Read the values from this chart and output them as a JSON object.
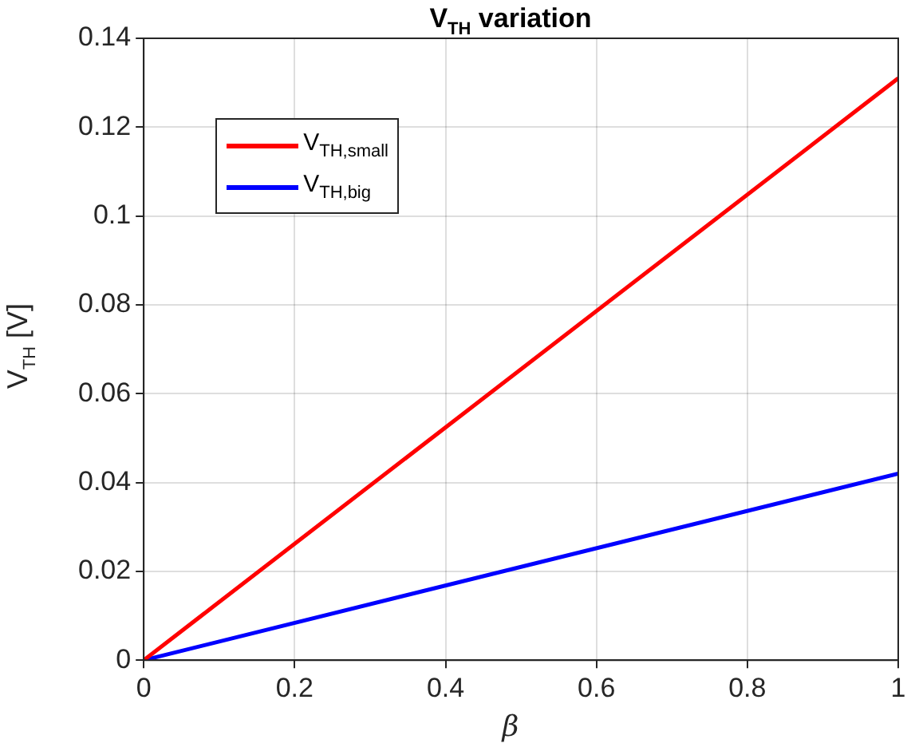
{
  "chart_data": {
    "type": "line",
    "title": "V$_{TH}$ variation",
    "xlabel": "β",
    "ylabel": "V$_{TH}$ [V]",
    "x": [
      0,
      1
    ],
    "series": [
      {
        "name": "V$_{TH,small}$",
        "color": "#ff0000",
        "values": [
          0,
          0.131
        ]
      },
      {
        "name": "V$_{TH,big}$",
        "color": "#0000ff",
        "values": [
          0,
          0.042
        ]
      }
    ],
    "xlim": [
      0,
      1
    ],
    "xticks": [
      0,
      0.2,
      0.4,
      0.6,
      0.8,
      1
    ],
    "ylim": [
      0,
      0.14
    ],
    "yticks": [
      0,
      0.02,
      0.04,
      0.06,
      0.08,
      0.1,
      0.12,
      0.14
    ],
    "grid": true,
    "legend": "top left",
    "marker": "none",
    "line_style": "solid"
  }
}
